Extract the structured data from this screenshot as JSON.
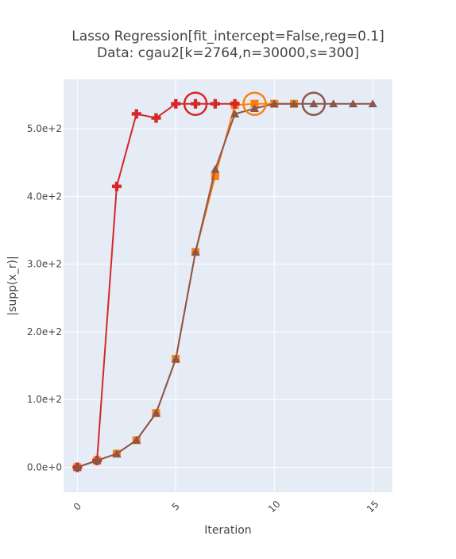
{
  "chart_data": {
    "type": "line",
    "title_line1": "Lasso Regression[fit_intercept=False,reg=0.1]",
    "title_line2": "Data: cgau2[k=2764,n=30000,s=300]",
    "xlabel": "Iteration",
    "ylabel": "|supp(x_r)|",
    "xlim": [
      -0.7,
      16.0
    ],
    "ylim": [
      -37,
      573
    ],
    "xticks": [
      0,
      5,
      10,
      15
    ],
    "xtick_labels": [
      "0",
      "5",
      "10",
      "15"
    ],
    "yticks": [
      0,
      100,
      200,
      300,
      400,
      500
    ],
    "ytick_labels": [
      "0.0e+0",
      "1.0e+2",
      "2.0e+2",
      "3.0e+2",
      "4.0e+2",
      "5.0e+2"
    ],
    "grid": true,
    "plot_bgcolor": "#e5ecf6",
    "series": [
      {
        "color": "#ff7f0e",
        "marker": "square",
        "x": [
          0,
          1,
          2,
          3,
          4,
          5,
          6,
          7,
          8,
          9,
          10,
          11
        ],
        "y": [
          0,
          10,
          20,
          40,
          80,
          160,
          318,
          430,
          535,
          537,
          537,
          537
        ],
        "highlight_x": 9
      },
      {
        "color": "#d62728",
        "marker": "cross",
        "x": [
          0,
          1,
          2,
          3,
          4,
          5,
          6,
          7,
          8
        ],
        "y": [
          0,
          10,
          415,
          522,
          516,
          537,
          537,
          537,
          537
        ],
        "highlight_x": 6
      },
      {
        "color": "#8c564b",
        "marker": "triangle",
        "x": [
          0,
          1,
          2,
          3,
          4,
          5,
          6,
          7,
          8,
          9,
          10,
          11,
          12,
          13,
          14,
          15
        ],
        "y": [
          0,
          10,
          20,
          40,
          80,
          160,
          318,
          440,
          522,
          530,
          537,
          537,
          537,
          537,
          537,
          537
        ],
        "highlight_x": 12
      }
    ]
  }
}
